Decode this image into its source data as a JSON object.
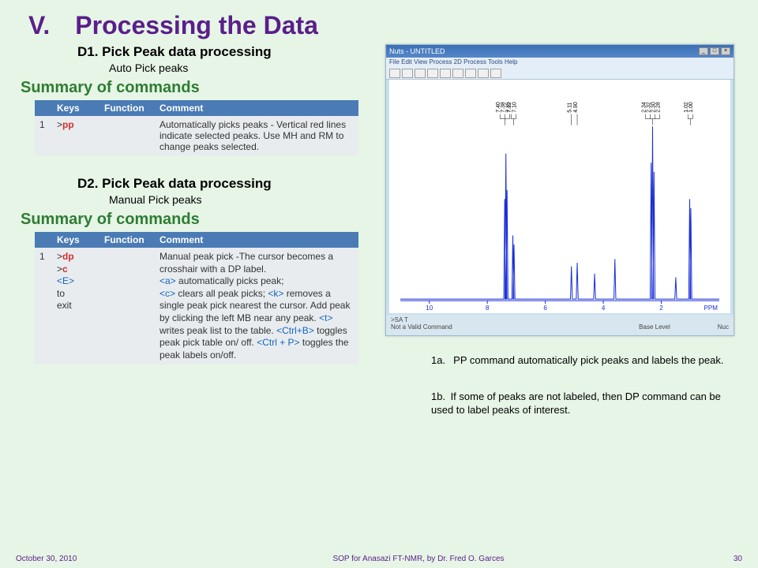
{
  "title": "V. Processing the Data",
  "d1": {
    "heading": "D1. Pick Peak data processing",
    "sub": "Auto Pick peaks",
    "summary": "Summary of commands",
    "headers": [
      "",
      "Keys",
      "Function",
      "Comment"
    ],
    "row_n": "1",
    "row_key_prefix": ">",
    "row_key_cmd": "pp",
    "row_comment": "Automatically picks peaks - Vertical red lines indicate selected peaks. Use MH and RM to change peaks selected."
  },
  "d2": {
    "heading": "D2. Pick Peak data processing",
    "sub": "Manual Pick peaks",
    "summary": "Summary of commands",
    "headers": [
      "",
      "Keys",
      "Function",
      "Comment"
    ],
    "row_n": "1",
    "keys": {
      "l1_prefix": ">",
      "l1_cmd": "dp",
      "l2_prefix": ">",
      "l2_cmd": "c",
      "l3": "<E>",
      "l4": "to",
      "l5": "exit"
    },
    "comment_parts": {
      "p1": "Manual peak pick -The cursor becomes a crosshair with a DP label.",
      "a_tag": "<a>",
      "a_txt": " automatically picks peak;",
      "c_tag": "<c>",
      "c_txt": " clears all peak picks; ",
      "k_tag": "<k>",
      "k_txt": " removes a single peak pick nearest the cursor. Add peak by clicking the left MB near any peak. ",
      "t_tag": "<t>",
      "t_txt": " writes peak list to the table. ",
      "cb_tag": "<Ctrl+B>",
      "cb_txt": " toggles peak pick table on/ off. ",
      "cp_tag": "<Ctrl + P>",
      "cp_txt": " toggles the peak labels on/off."
    }
  },
  "nmr": {
    "title": "Nuts - UNTITLED",
    "menus": "File  Edit  View  Process  2D Process  Tools  Help",
    "status1": ">SA T",
    "status2": "Not a Valid Command",
    "status_right1": "Base Level",
    "status_right2": "Nuc",
    "xaxis_label": "PPM",
    "xticks": [
      10,
      8,
      6,
      4,
      2
    ],
    "peak_labels": [
      {
        "x_ppm": 7.4,
        "text": "7.40|7.38|7.35"
      },
      {
        "x_ppm": 7.1,
        "text": "7.12|7.10"
      },
      {
        "x_ppm": 5.1,
        "text": "5.11"
      },
      {
        "x_ppm": 4.9,
        "text": "4.90"
      },
      {
        "x_ppm": 2.3,
        "text": "2.34|2.32|2.30|2.28"
      },
      {
        "x_ppm": 1.0,
        "text": "1.02|1.00"
      }
    ],
    "peaks": [
      {
        "x_ppm": 7.4,
        "h": 0.55
      },
      {
        "x_ppm": 7.36,
        "h": 0.8
      },
      {
        "x_ppm": 7.32,
        "h": 0.6
      },
      {
        "x_ppm": 7.12,
        "h": 0.35
      },
      {
        "x_ppm": 7.08,
        "h": 0.3
      },
      {
        "x_ppm": 5.1,
        "h": 0.18
      },
      {
        "x_ppm": 4.9,
        "h": 0.2
      },
      {
        "x_ppm": 4.3,
        "h": 0.14
      },
      {
        "x_ppm": 3.6,
        "h": 0.22
      },
      {
        "x_ppm": 2.35,
        "h": 0.75
      },
      {
        "x_ppm": 2.3,
        "h": 0.95
      },
      {
        "x_ppm": 2.25,
        "h": 0.7
      },
      {
        "x_ppm": 1.5,
        "h": 0.12
      },
      {
        "x_ppm": 1.02,
        "h": 0.55
      },
      {
        "x_ppm": 0.98,
        "h": 0.5
      }
    ],
    "xlim": [
      11,
      0
    ],
    "plot_color": "#1a2fd8",
    "baseline_color": "#1a2fd8"
  },
  "notes": {
    "n1": "1a.  PP command automatically pick peaks and labels the peak.",
    "n2": "1b. If some of peaks are not labeled, then DP command can be used to label peaks of interest."
  },
  "footer": {
    "date": "October 30, 2010",
    "center": "SOP for Anasazi FT-NMR, by Dr. Fred O. Garces",
    "page": "30"
  }
}
